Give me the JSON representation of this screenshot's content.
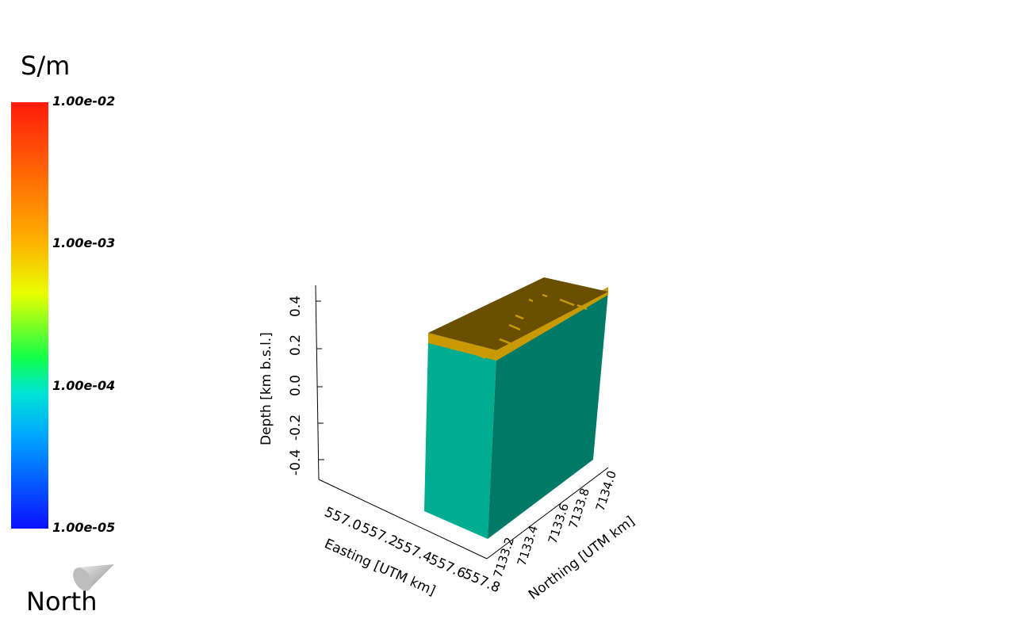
{
  "colorbar": {
    "unit": "S/m",
    "ticks": [
      "1.00e-02",
      "1.00e-03",
      "1.00e-04",
      "1.00e-05"
    ],
    "colors": [
      "#ff1a0a",
      "#ffb300",
      "#e8ff00",
      "#00e5d5",
      "#0a10ff"
    ],
    "scale": "log"
  },
  "orientation": {
    "label": "North"
  },
  "axes": {
    "depth": {
      "title": "Depth [km  b.s.l.]",
      "ticks": [
        "-0.4",
        "-0.2",
        "0.0",
        "0.2",
        "0.4"
      ]
    },
    "easting": {
      "title": "Easting [UTM  km]",
      "ticks": [
        "557.0",
        "557.2",
        "557.4",
        "557.6",
        "557.8"
      ]
    },
    "northing": {
      "title": "Northing [UTM km]",
      "ticks": [
        "7133.2",
        "7133.4",
        "7133.6",
        "7133.8",
        "7134.0"
      ]
    }
  },
  "model": {
    "front_color": "#00ad91",
    "side_color": "#007a66",
    "top_color": "#6b4f00",
    "top_edge_color": "#c89a00"
  }
}
